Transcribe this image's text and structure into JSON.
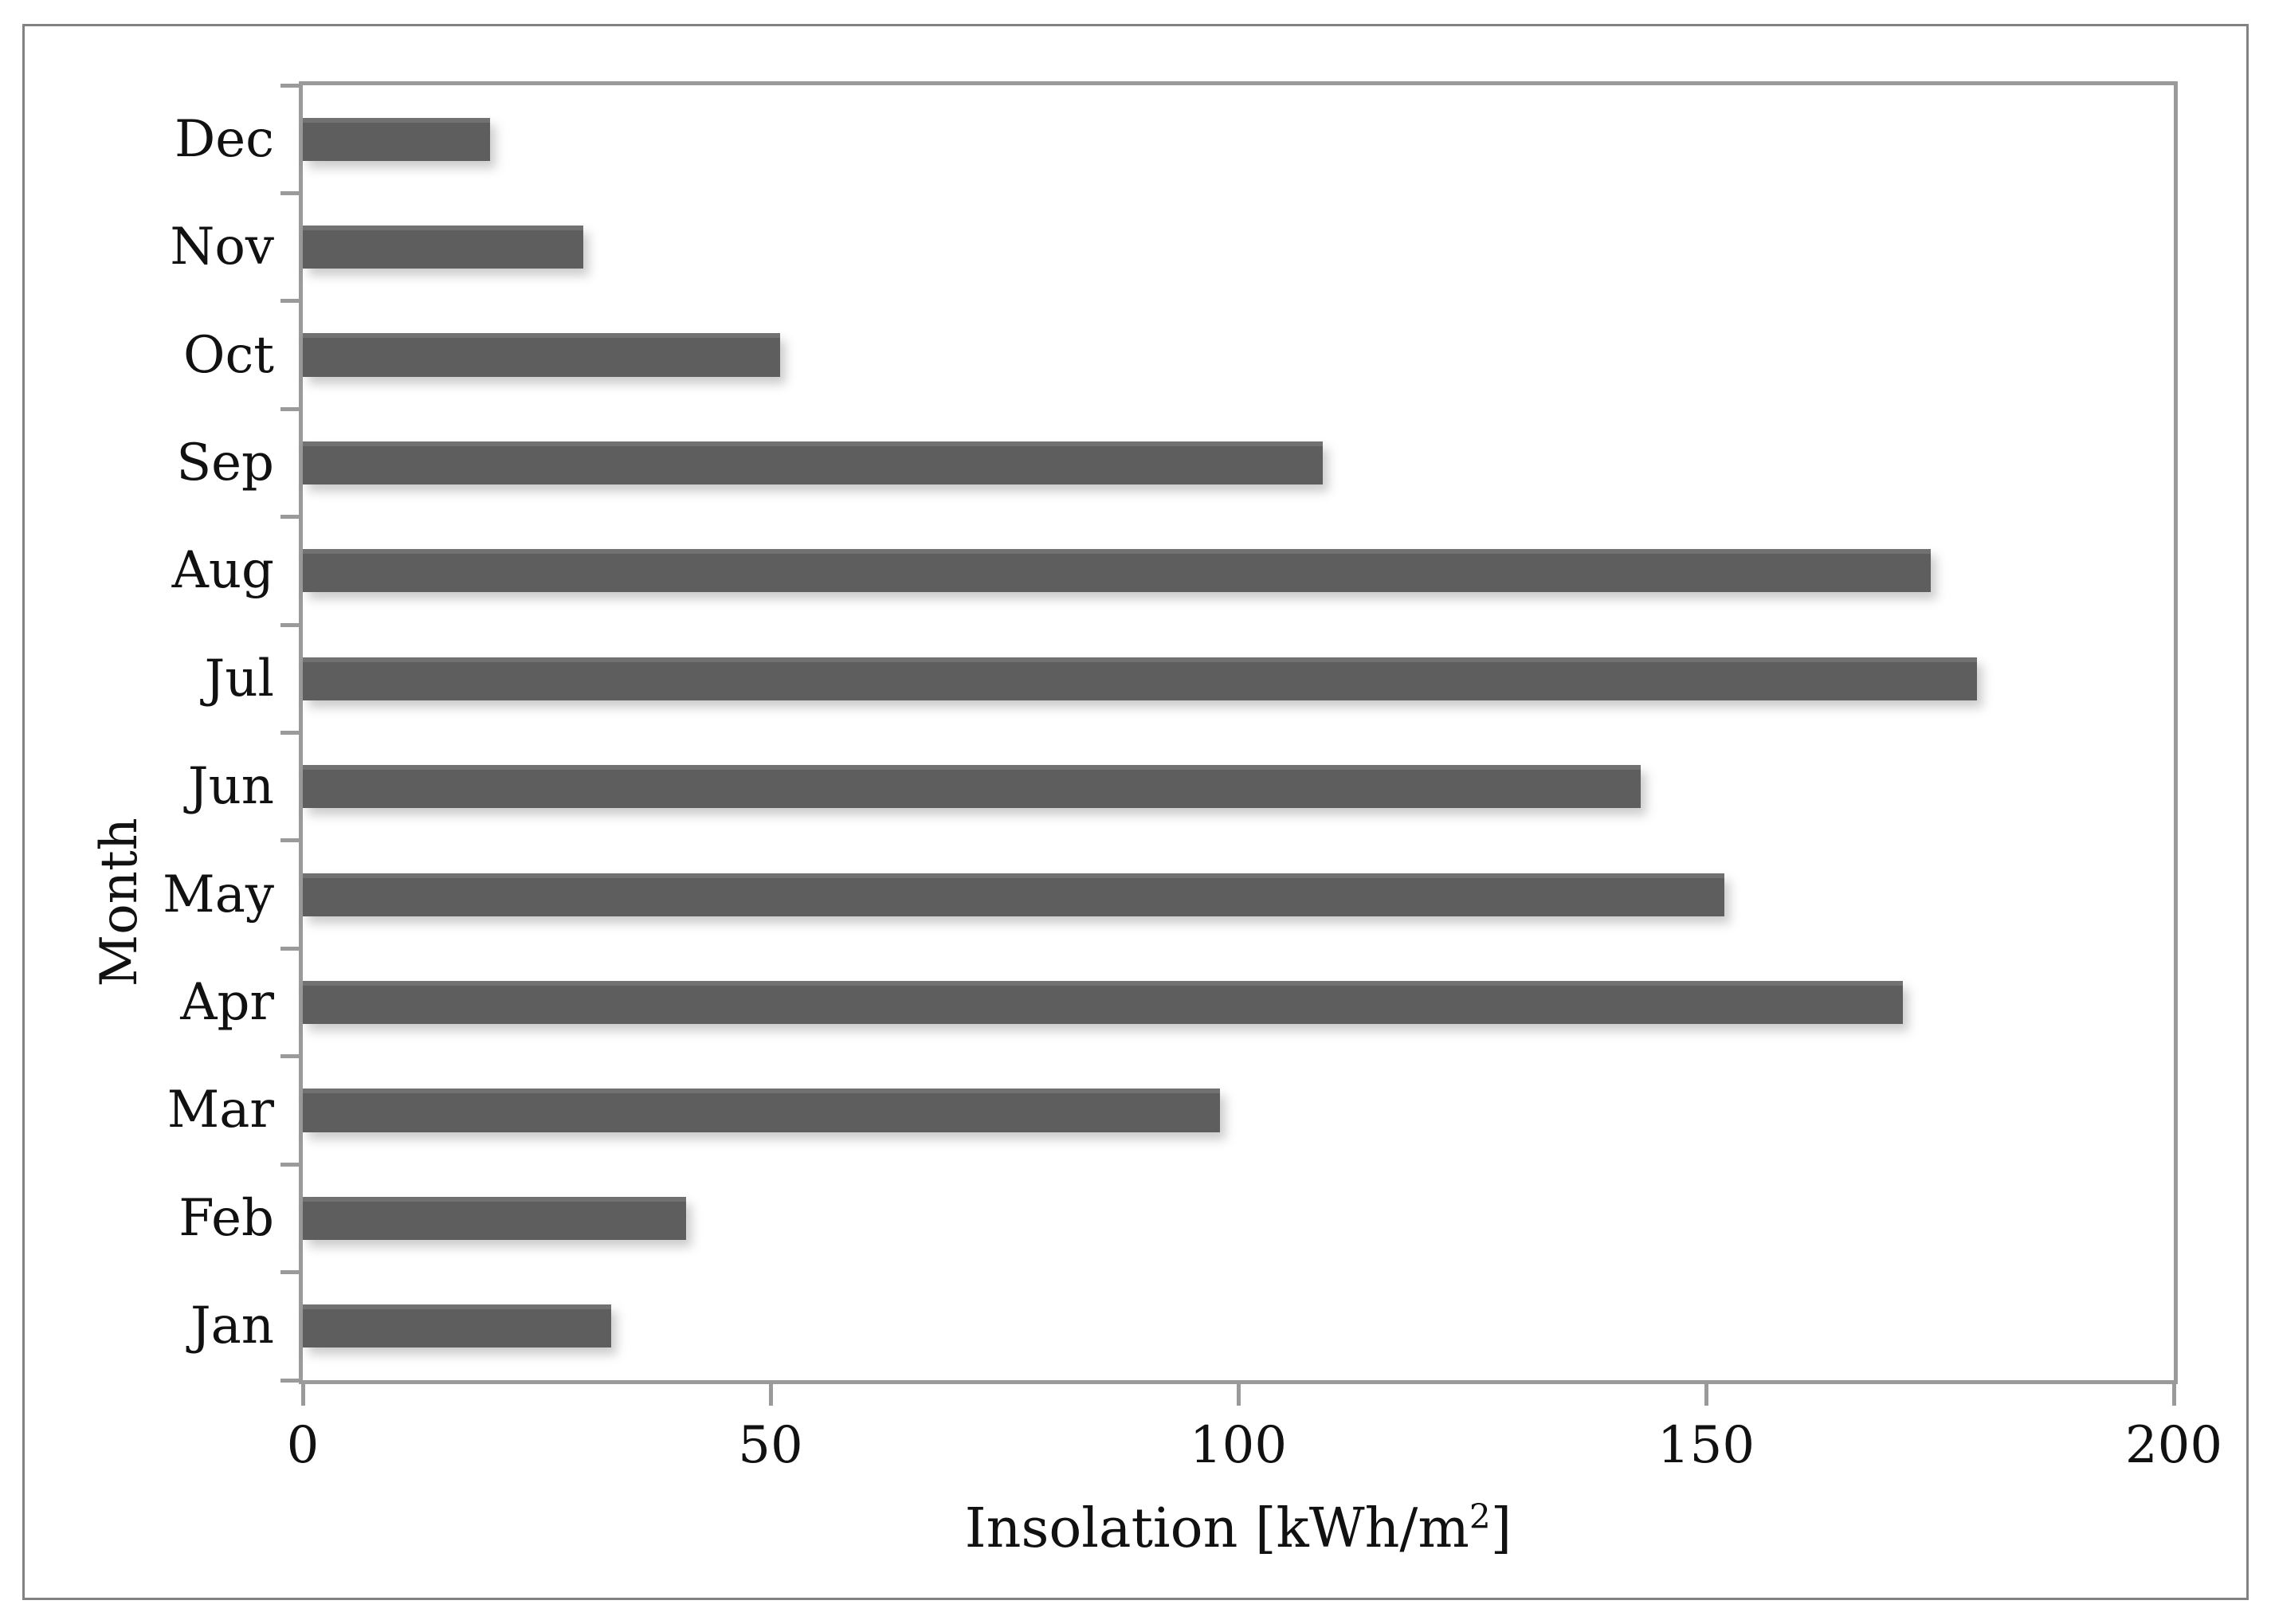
{
  "chart_data": {
    "type": "bar",
    "orientation": "horizontal",
    "title": "",
    "xlabel_parts": {
      "main": "Insolation [kWh/m",
      "sup": "2",
      "end": "]"
    },
    "xlabel_plain": "Insolation [kWh/m2]",
    "ylabel": "Month",
    "xlim": [
      0,
      200
    ],
    "xticks": [
      0,
      50,
      100,
      150,
      200
    ],
    "grid": false,
    "legend": null,
    "bar_color": "#5e5e5e",
    "axis_color": "#9a9a9a",
    "frame_color": "#828282",
    "categories_top_to_bottom": [
      "Dec",
      "Nov",
      "Oct",
      "Sep",
      "Aug",
      "Jul",
      "Jun",
      "May",
      "Apr",
      "Mar",
      "Feb",
      "Jan"
    ],
    "points_top_to_bottom": [
      {
        "month": "Dec",
        "value": 20
      },
      {
        "month": "Nov",
        "value": 30
      },
      {
        "month": "Oct",
        "value": 51
      },
      {
        "month": "Sep",
        "value": 109
      },
      {
        "month": "Aug",
        "value": 174
      },
      {
        "month": "Jul",
        "value": 179
      },
      {
        "month": "Jun",
        "value": 143
      },
      {
        "month": "May",
        "value": 152
      },
      {
        "month": "Apr",
        "value": 171
      },
      {
        "month": "Mar",
        "value": 98
      },
      {
        "month": "Feb",
        "value": 41
      },
      {
        "month": "Jan",
        "value": 33
      }
    ],
    "categories_calendar_order": [
      "Jan",
      "Feb",
      "Mar",
      "Apr",
      "May",
      "Jun",
      "Jul",
      "Aug",
      "Sep",
      "Oct",
      "Nov",
      "Dec"
    ],
    "values_calendar_order": [
      33,
      41,
      98,
      171,
      152,
      143,
      179,
      174,
      109,
      51,
      30,
      20
    ]
  }
}
